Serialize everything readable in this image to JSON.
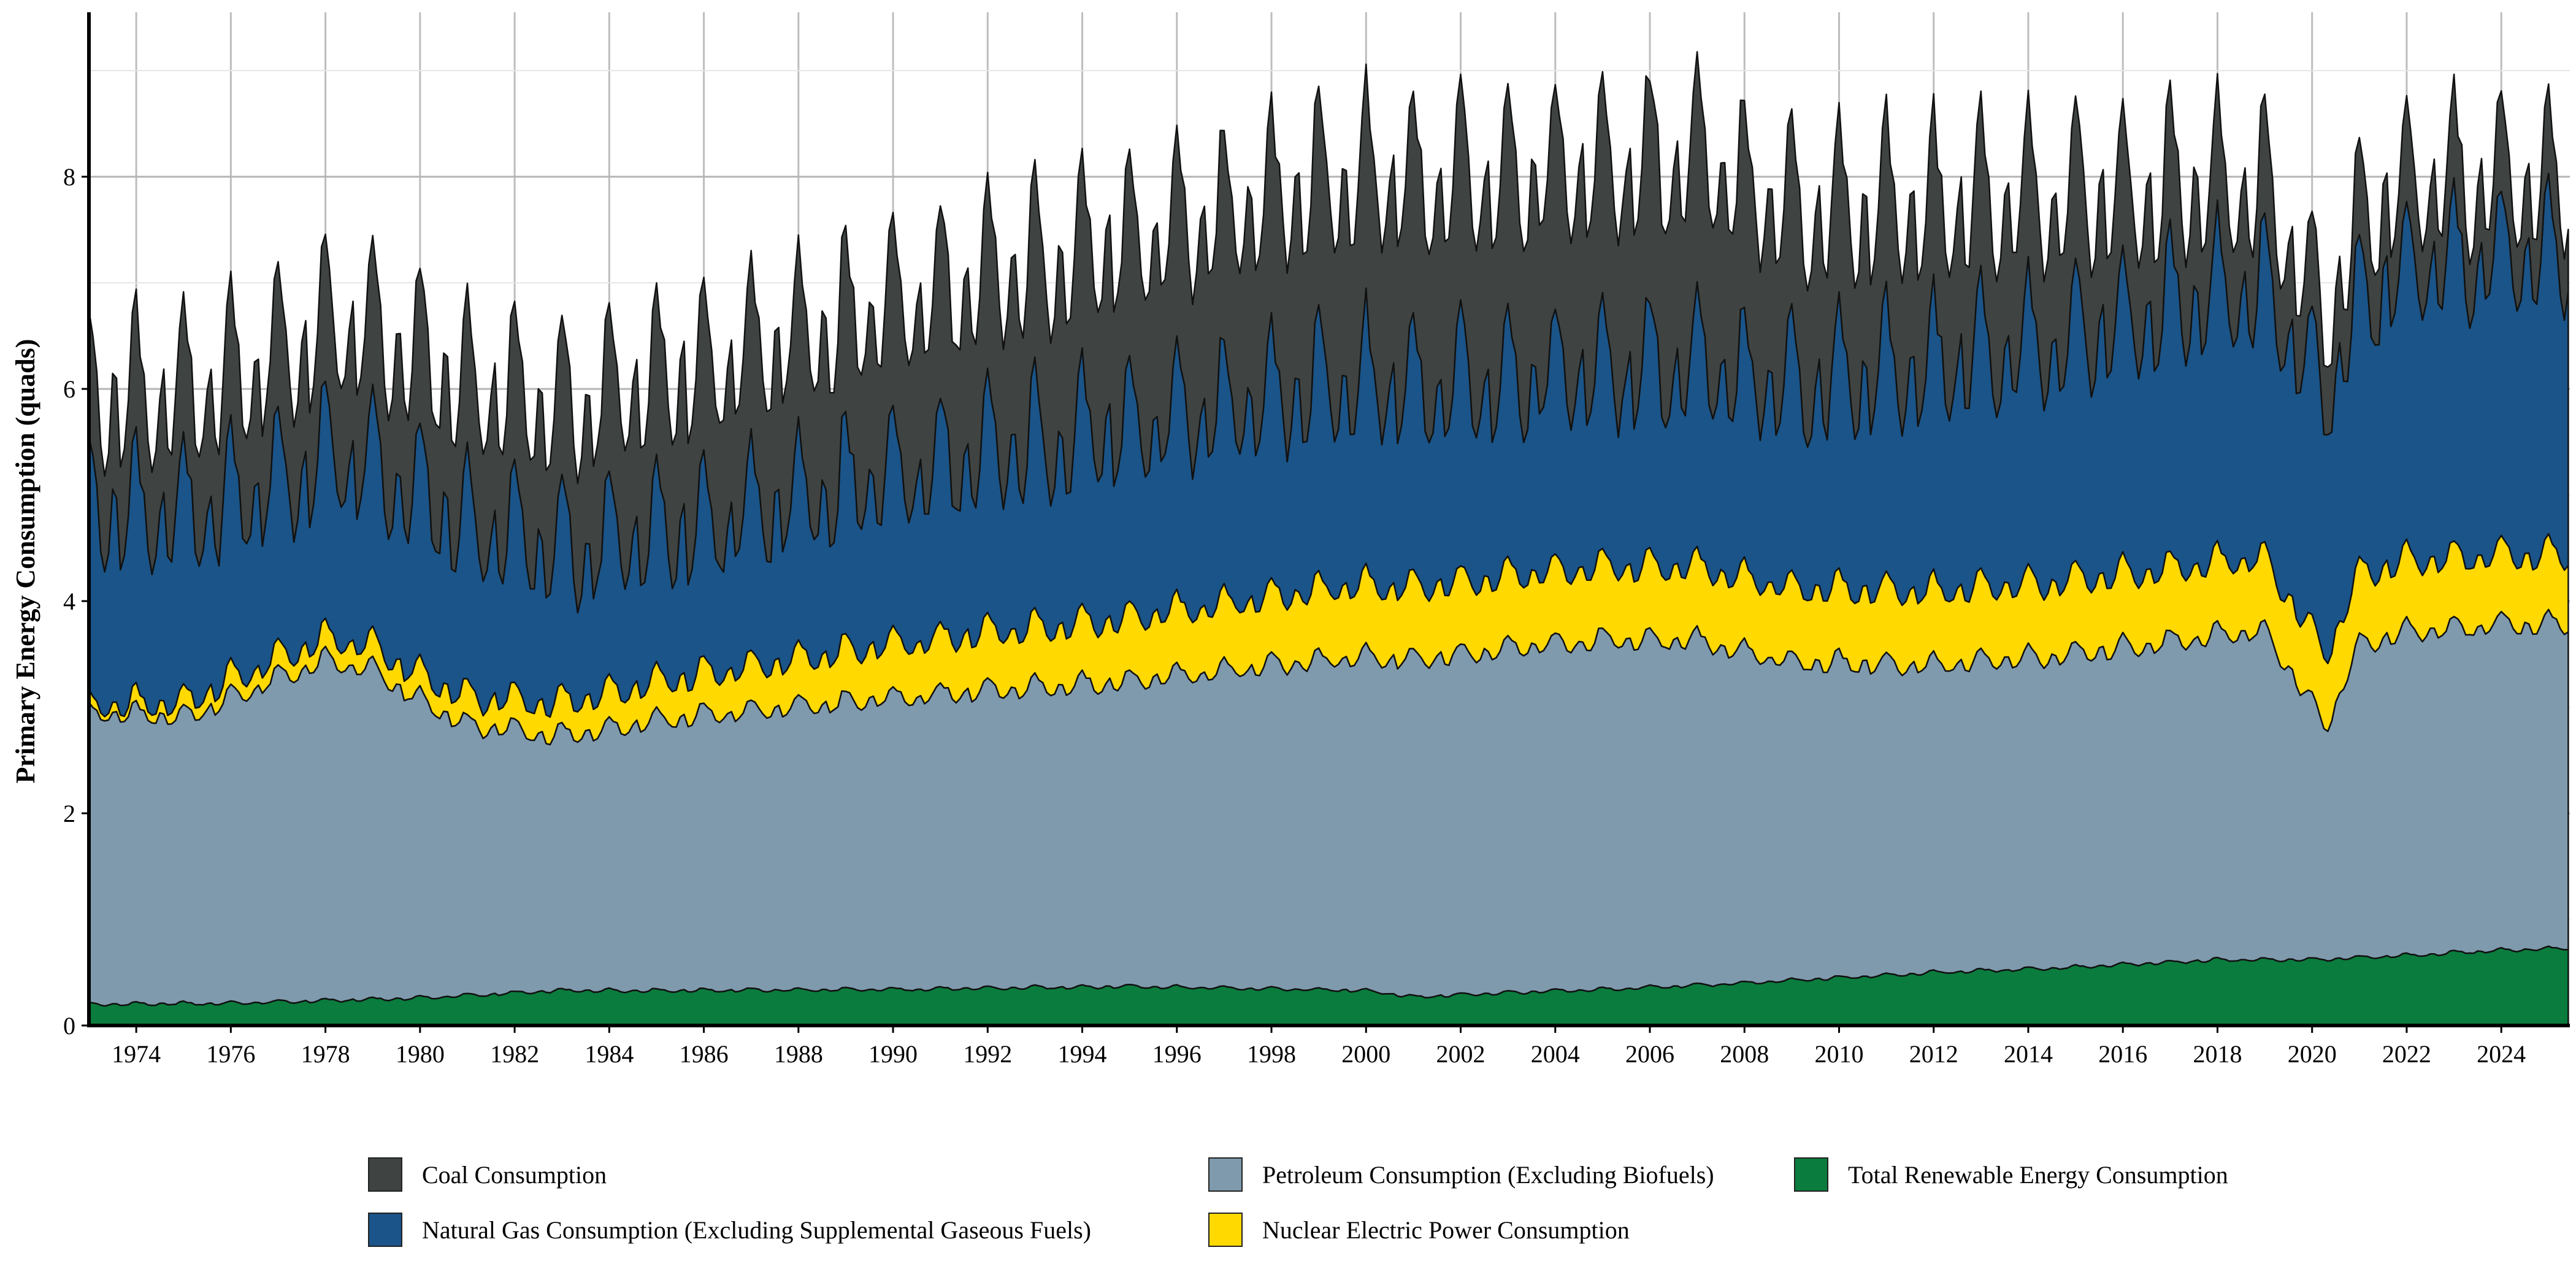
{
  "chart_data": {
    "type": "area",
    "stacked": true,
    "ylabel": "Primary Energy Consumption (quads)",
    "xlabel": "",
    "title": "",
    "xlim": [
      1973.0,
      2025.45
    ],
    "ylim": [
      0,
      9.55
    ],
    "x_ticks": [
      "1974",
      "1976",
      "1978",
      "1980",
      "1982",
      "1984",
      "1986",
      "1988",
      "1990",
      "1992",
      "1994",
      "1996",
      "1998",
      "2000",
      "2002",
      "2004",
      "2006",
      "2008",
      "2010",
      "2012",
      "2014",
      "2016",
      "2018",
      "2020",
      "2022",
      "2024"
    ],
    "y_ticks": [
      "0",
      "2",
      "4",
      "6",
      "8"
    ],
    "grid": true,
    "legend_position": "bottom",
    "resolution": "monthly; values shown are approximate annual anchors read from the chart, seasonal swing amplitudes estimated",
    "series": [
      {
        "name": "Total Renewable Energy Consumption",
        "color": "#0a7c3e",
        "years": [
          1973,
          1976,
          1980,
          1983,
          1985,
          1990,
          1995,
          2000,
          2001,
          2003,
          2005,
          2008,
          2010,
          2012,
          2015,
          2018,
          2020,
          2022,
          2024,
          2025.4
        ],
        "values": [
          0.2,
          0.21,
          0.26,
          0.33,
          0.33,
          0.34,
          0.37,
          0.33,
          0.27,
          0.31,
          0.34,
          0.4,
          0.45,
          0.5,
          0.55,
          0.62,
          0.62,
          0.66,
          0.71,
          0.73
        ],
        "seasonal_amplitude": 0.02
      },
      {
        "name": "Petroleum Consumption (Excluding Biofuels)",
        "color": "#7f9aac",
        "years": [
          1973,
          1975,
          1977,
          1978,
          1979,
          1980,
          1981,
          1983,
          1985,
          1990,
          1995,
          2000,
          2005,
          2007,
          2009,
          2012,
          2015,
          2019,
          2020.3,
          2021,
          2022,
          2024,
          2025.4
        ],
        "values": [
          2.75,
          2.7,
          3.05,
          3.2,
          3.1,
          2.8,
          2.55,
          2.4,
          2.55,
          2.75,
          2.88,
          3.15,
          3.3,
          3.25,
          3.0,
          2.9,
          2.95,
          3.1,
          2.2,
          2.95,
          3.05,
          3.07,
          3.05
        ],
        "seasonal_amplitude": 0.1
      },
      {
        "name": "Nuclear Electric Power Consumption",
        "color": "#ffd900",
        "years": [
          1973,
          1976,
          1980,
          1985,
          1990,
          1995,
          2000,
          2005,
          2010,
          2015,
          2020,
          2024,
          2025.4
        ],
        "values": [
          0.07,
          0.18,
          0.24,
          0.36,
          0.51,
          0.6,
          0.68,
          0.69,
          0.7,
          0.7,
          0.68,
          0.66,
          0.65
        ],
        "seasonal_amplitude": 0.06
      },
      {
        "name": "Natural Gas Consumption (Excluding Supplemental Gaseous Fuels)",
        "color": "#1a5488",
        "years": [
          1973,
          1976,
          1980,
          1983,
          1986,
          1990,
          1995,
          2000,
          2005,
          2009,
          2012,
          2015,
          2018,
          2020.3,
          2022,
          2025.4
        ],
        "values": [
          1.9,
          1.68,
          1.72,
          1.45,
          1.4,
          1.6,
          1.82,
          1.92,
          1.85,
          1.9,
          2.15,
          2.3,
          2.55,
          2.45,
          2.75,
          2.85
        ],
        "seasonal_amplitude": 0.55
      },
      {
        "name": "Coal Consumption",
        "color": "#3f4443",
        "years": [
          1973,
          1976,
          1980,
          1983,
          1985,
          1990,
          1995,
          2000,
          2005,
          2007,
          2009,
          2012,
          2015,
          2016,
          2019,
          2020,
          2022,
          2025.4
        ],
        "values": [
          1.05,
          1.15,
          1.3,
          1.35,
          1.45,
          1.6,
          1.75,
          1.95,
          1.9,
          1.95,
          1.65,
          1.5,
          1.35,
          1.2,
          0.95,
          0.75,
          0.8,
          0.68
        ],
        "seasonal_amplitude": 0.18
      }
    ]
  },
  "legend": [
    {
      "label": "Coal Consumption",
      "color": "#3f4443"
    },
    {
      "label": "Natural Gas Consumption (Excluding Supplemental Gaseous Fuels)",
      "color": "#1a5488"
    },
    {
      "label": "Petroleum Consumption (Excluding Biofuels)",
      "color": "#7f9aac"
    },
    {
      "label": "Nuclear Electric Power Consumption",
      "color": "#ffd900"
    },
    {
      "label": "Total Renewable Energy Consumption",
      "color": "#0a7c3e"
    }
  ]
}
